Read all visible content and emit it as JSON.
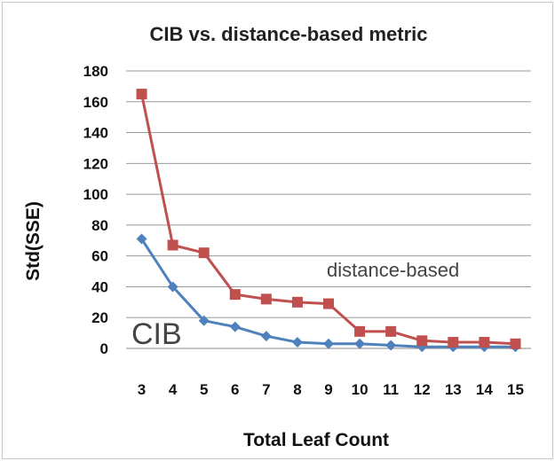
{
  "chart_data": {
    "type": "line",
    "title": "CIB vs. distance-based metric",
    "xlabel": "Total Leaf Count",
    "ylabel": "Std(SSE)",
    "x": [
      3,
      4,
      5,
      6,
      7,
      8,
      9,
      10,
      11,
      12,
      13,
      14,
      15
    ],
    "ylim": [
      0,
      180
    ],
    "yticks": [
      0,
      20,
      40,
      60,
      80,
      100,
      120,
      140,
      160,
      180
    ],
    "grid": true,
    "series": [
      {
        "name": "CIB",
        "color": "#4f81bd",
        "marker": "diamond",
        "values": [
          71,
          40,
          18,
          14,
          8,
          4,
          3,
          3,
          2,
          1,
          1,
          1,
          1
        ]
      },
      {
        "name": "distance-based",
        "color": "#c0504d",
        "marker": "square",
        "values": [
          165,
          67,
          62,
          35,
          32,
          30,
          29,
          11,
          11,
          5,
          4,
          4,
          3
        ]
      }
    ],
    "annotations": [
      "CIB",
      "distance-based"
    ]
  }
}
